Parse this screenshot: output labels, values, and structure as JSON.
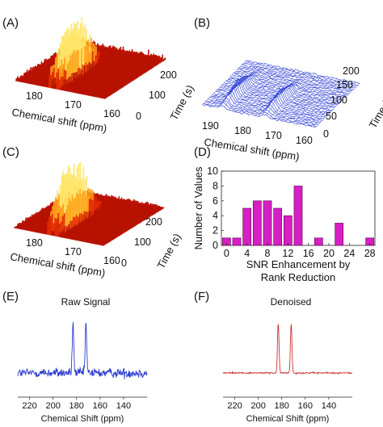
{
  "chart_data": [
    {
      "panel": "(A)",
      "type": "surface3d",
      "xlabel": "Chemical shift (ppm)",
      "ylabel": "Time (s)",
      "xticks": [
        "180",
        "170",
        "160"
      ],
      "yticks": [
        "0",
        "100",
        "200"
      ],
      "colormap": "hot",
      "peaks_ppm": [
        173,
        170
      ]
    },
    {
      "panel": "(B)",
      "type": "mesh3d",
      "xlabel": "Chemical shift (ppm)",
      "ylabel": "Time (s)",
      "xticks": [
        "190",
        "180",
        "170",
        "160"
      ],
      "yticks": [
        "0",
        "50",
        "100",
        "150",
        "200"
      ],
      "color": "#2233cc",
      "peaks_ppm": [
        183,
        172
      ]
    },
    {
      "panel": "(C)",
      "type": "surface3d",
      "xlabel": "Chemical shift (ppm)",
      "ylabel": "Time (s)",
      "xticks": [
        "180",
        "170",
        "160"
      ],
      "yticks": [
        "0",
        "100",
        "200"
      ],
      "colormap": "hot",
      "peaks_ppm": [
        173,
        170
      ]
    },
    {
      "panel": "(D)",
      "type": "bar",
      "xlabel": "SNR Enhancement by Rank Reduction",
      "xlabel_lines": [
        "SNR Enhancement by",
        "Rank Reduction"
      ],
      "ylabel": "Number of Values",
      "xlim": [
        -1,
        29
      ],
      "ylim": [
        0,
        10
      ],
      "xticks": [
        0,
        4,
        8,
        12,
        16,
        20,
        24,
        28
      ],
      "yticks": [
        0,
        2,
        4,
        6,
        8,
        10
      ],
      "bar_width": 1.6,
      "color": "#d61fc4",
      "x": [
        0,
        2,
        4,
        6,
        8,
        10,
        12,
        14,
        18,
        22,
        28
      ],
      "values": [
        1,
        1,
        5,
        6,
        6,
        5,
        4,
        8,
        1,
        3,
        1
      ]
    },
    {
      "panel": "(E)",
      "type": "line",
      "title": "Raw Signal",
      "xlabel": "Chemical Shift (ppm)",
      "xlim": [
        230,
        120
      ],
      "xticks": [
        220,
        200,
        180,
        160,
        140
      ],
      "color": "#2a3ccc",
      "peaks": [
        {
          "x": 183,
          "height": 1.0
        },
        {
          "x": 172,
          "height": 1.0
        }
      ],
      "noise_level": 0.3
    },
    {
      "panel": "(F)",
      "type": "line",
      "title": "Denoised",
      "xlabel": "Chemical Shift (ppm)",
      "xlim": [
        230,
        120
      ],
      "xticks": [
        220,
        200,
        180,
        160,
        140
      ],
      "color": "#cc3333",
      "peaks": [
        {
          "x": 183,
          "height": 1.0
        },
        {
          "x": 172,
          "height": 1.0
        }
      ],
      "noise_level": 0.05
    }
  ]
}
